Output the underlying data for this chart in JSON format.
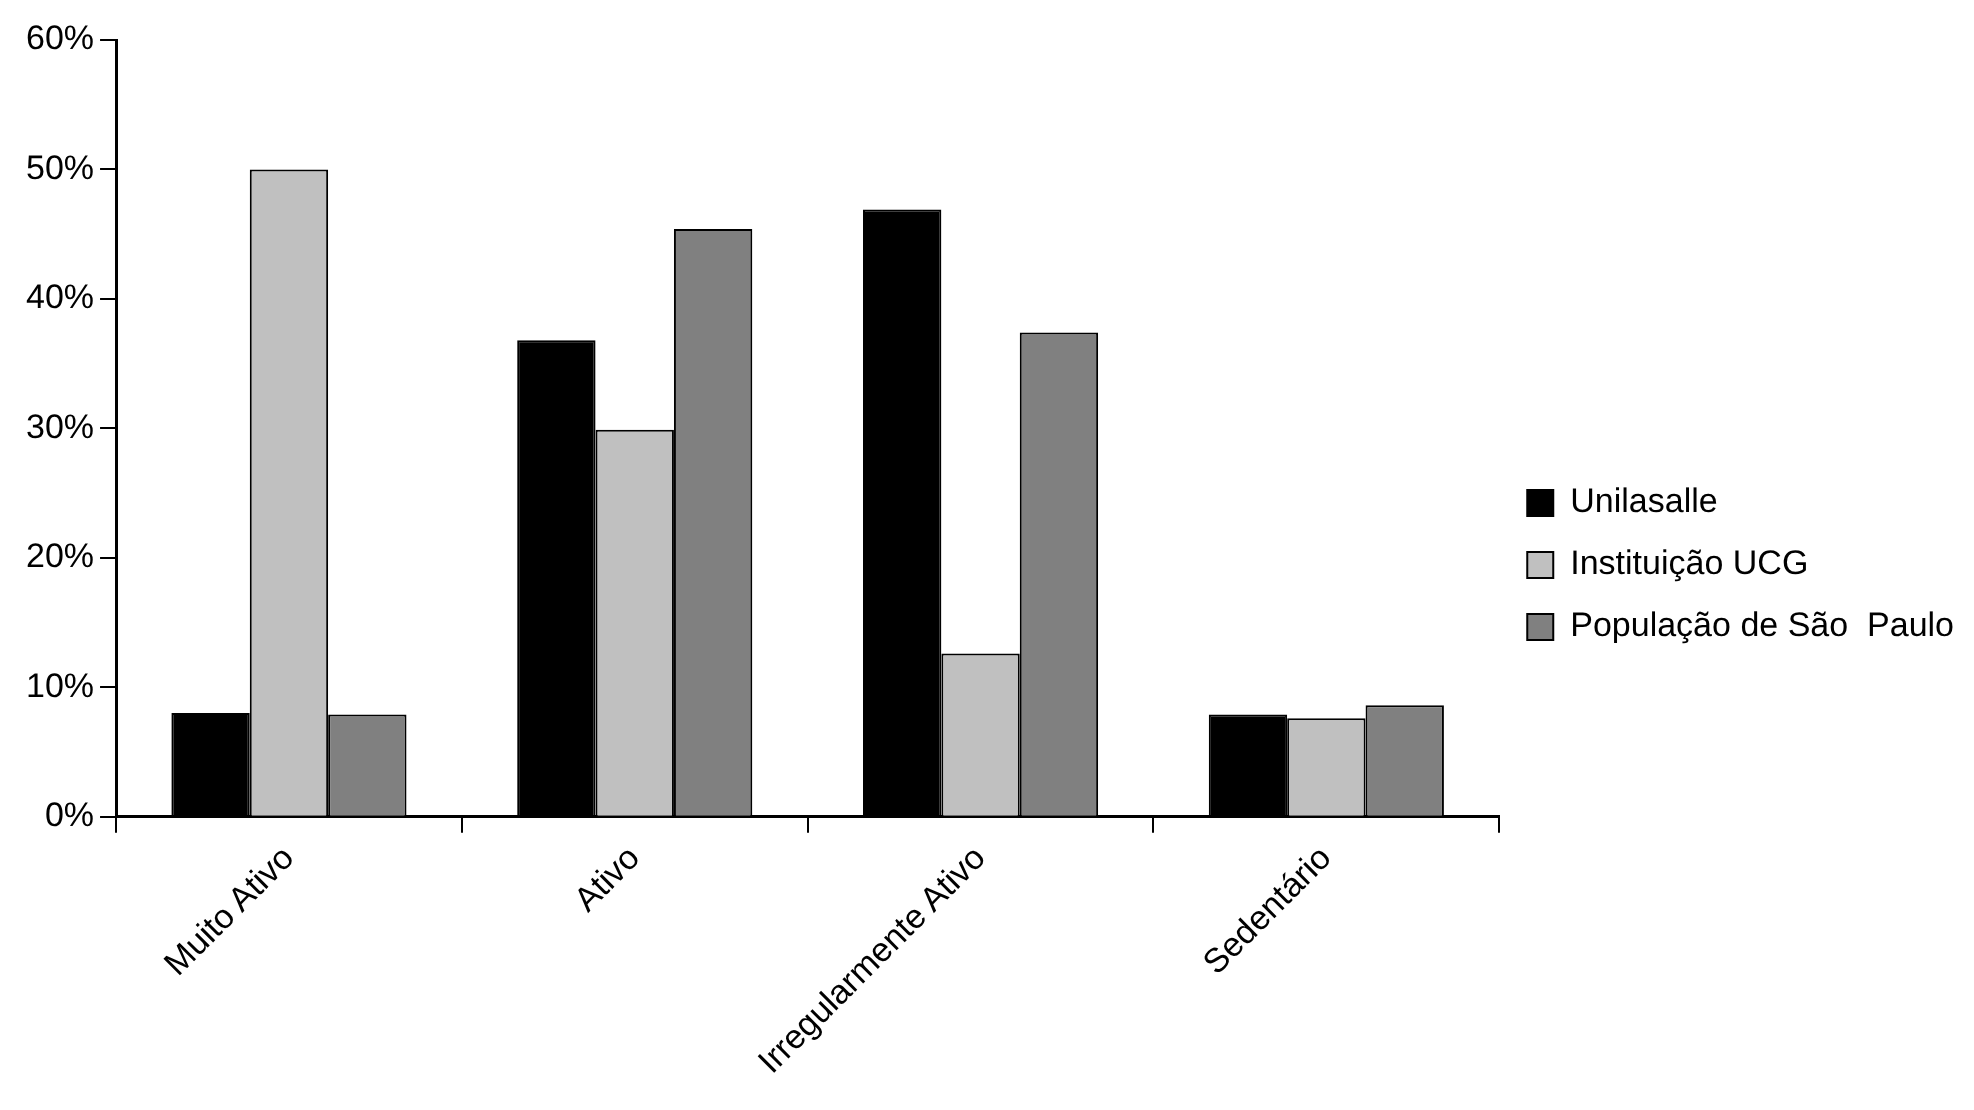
{
  "chart_data": {
    "type": "bar",
    "categories": [
      "Muito Ativo",
      "Ativo",
      "Irregularmente Ativo",
      "Sedentário"
    ],
    "series": [
      {
        "name": "Unilasalle",
        "color": "#000000",
        "values": [
          8,
          36.8,
          46.9,
          7.9
        ]
      },
      {
        "name": "Instituição UCG",
        "color": "#c0c0c0",
        "values": [
          50,
          29.9,
          12.6,
          7.6
        ]
      },
      {
        "name": "População de São  Paulo",
        "color": "#808080",
        "values": [
          7.9,
          45.4,
          37.4,
          8.6
        ]
      }
    ],
    "ylim": [
      0,
      60
    ],
    "yticks": [
      {
        "value": 0,
        "label": "0%"
      },
      {
        "value": 10,
        "label": "10%"
      },
      {
        "value": 20,
        "label": "20%"
      },
      {
        "value": 30,
        "label": "30%"
      },
      {
        "value": 40,
        "label": "40%"
      },
      {
        "value": 50,
        "label": "50%"
      },
      {
        "value": 60,
        "label": "60%"
      }
    ],
    "grid": false,
    "legend": "right"
  }
}
